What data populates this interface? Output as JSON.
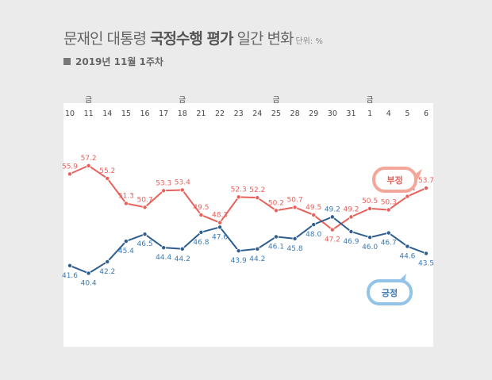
{
  "header": {
    "title_light_1": "문재인 대통령 ",
    "title_bold": "국정수행 평가",
    "title_light_2": " 일간 변화",
    "unit": "단위: %",
    "subtitle": "2019년 11월 1주차"
  },
  "chart_data": {
    "type": "line",
    "categories": [
      "10",
      "11",
      "14",
      "15",
      "16",
      "17",
      "18",
      "21",
      "22",
      "23",
      "24",
      "25",
      "28",
      "29",
      "30",
      "31",
      "1",
      "4",
      "5",
      "6"
    ],
    "friday_marks": [
      {
        "category": "11",
        "label": "금"
      },
      {
        "category": "18",
        "label": "금"
      },
      {
        "category": "25",
        "label": "금"
      },
      {
        "category": "1",
        "label": "금"
      }
    ],
    "series": [
      {
        "name": "부정",
        "color": "#e8605a",
        "values": [
          55.9,
          57.2,
          55.2,
          51.3,
          50.7,
          53.3,
          53.4,
          49.5,
          48.3,
          52.3,
          52.2,
          50.2,
          50.7,
          49.5,
          47.2,
          49.2,
          50.5,
          50.3,
          52.4,
          53.7
        ]
      },
      {
        "name": "긍정",
        "color": "#2e5d8f",
        "values": [
          41.6,
          40.4,
          42.2,
          45.4,
          46.5,
          44.4,
          44.2,
          46.8,
          47.6,
          43.9,
          44.2,
          46.1,
          45.8,
          48.0,
          49.2,
          46.9,
          46.0,
          46.7,
          44.6,
          43.5
        ]
      }
    ],
    "label_colors": {
      "부정": "#e8605a",
      "긍정": "#3a7ab5"
    },
    "ylim": [
      36,
      62
    ],
    "grid": false
  },
  "colors": {
    "background": "#ebebeb",
    "plot_background": "#ffffff",
    "negative_bubble": "#f2a79a",
    "positive_bubble": "#92c3e8"
  }
}
